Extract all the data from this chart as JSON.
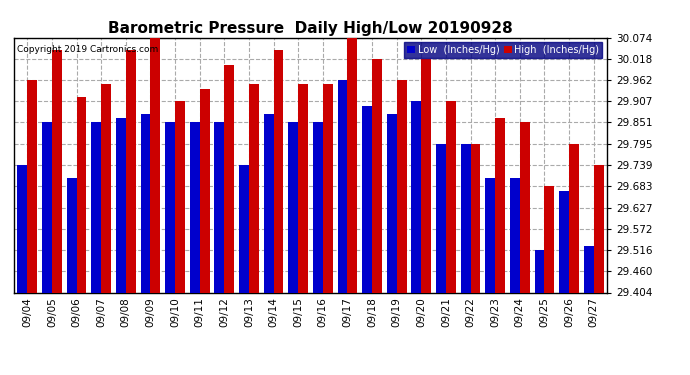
{
  "title": "Barometric Pressure  Daily High/Low 20190928",
  "copyright": "Copyright 2019 Cartronics.com",
  "ylim": [
    29.404,
    30.074
  ],
  "yticks": [
    29.404,
    29.46,
    29.516,
    29.572,
    29.627,
    29.683,
    29.739,
    29.795,
    29.851,
    29.907,
    29.962,
    30.018,
    30.074
  ],
  "dates": [
    "09/04",
    "09/05",
    "09/06",
    "09/07",
    "09/08",
    "09/09",
    "09/10",
    "09/11",
    "09/12",
    "09/13",
    "09/14",
    "09/15",
    "09/16",
    "09/17",
    "09/18",
    "09/19",
    "09/20",
    "09/21",
    "09/22",
    "09/23",
    "09/24",
    "09/25",
    "09/26",
    "09/27"
  ],
  "low_values": [
    29.739,
    29.851,
    29.705,
    29.851,
    29.862,
    29.873,
    29.851,
    29.851,
    29.851,
    29.739,
    29.873,
    29.851,
    29.851,
    29.962,
    29.895,
    29.873,
    29.907,
    29.795,
    29.795,
    29.705,
    29.705,
    29.516,
    29.67,
    29.527
  ],
  "high_values": [
    29.962,
    30.04,
    29.918,
    29.951,
    30.04,
    30.074,
    29.907,
    29.94,
    30.002,
    29.951,
    30.04,
    29.951,
    29.951,
    30.074,
    30.018,
    29.962,
    30.018,
    29.907,
    29.795,
    29.862,
    29.851,
    29.683,
    29.795,
    29.739
  ],
  "bar_color_low": "#0000cc",
  "bar_color_high": "#cc0000",
  "background_color": "#ffffff",
  "grid_color": "#aaaaaa",
  "title_fontsize": 11,
  "tick_fontsize": 7.5,
  "bar_width": 0.4
}
